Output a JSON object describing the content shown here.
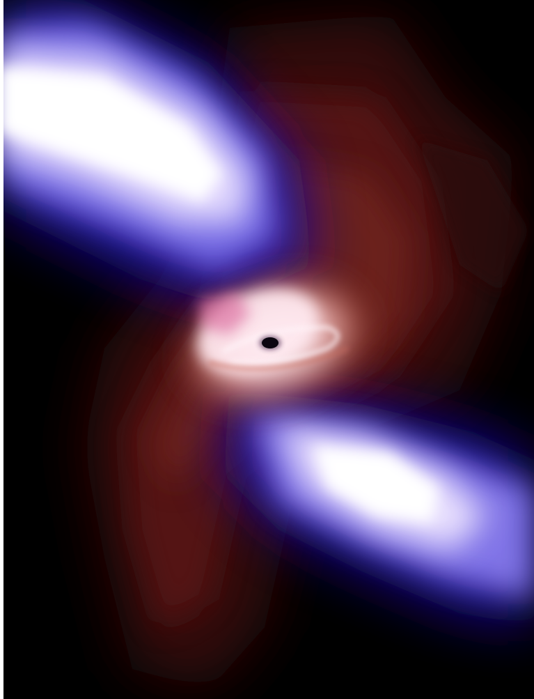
{
  "image": {
    "subject": "black-hole-accretion-disk-with-relativistic-jets",
    "colors": {
      "background": "#000000",
      "jet_core": "#ffffff",
      "jet_mid": "#b4a6f5",
      "jet_edge": "#1a0f9a",
      "disk_hot": "#fff0f4",
      "disk_warm": "#c97a6c",
      "gas_dark": "#4a1210",
      "black_hole": "#0b0610"
    }
  }
}
